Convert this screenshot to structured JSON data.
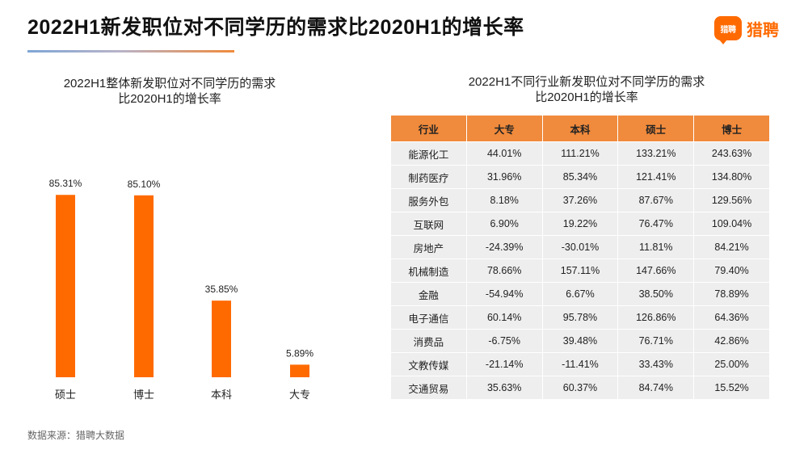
{
  "page": {
    "title": "2022H1新发职位对不同学历的需求比2020H1的增长率",
    "logo_mark": "猎聘",
    "logo_text": "猎聘",
    "source": "数据来源：猎聘大数据",
    "accent_color": "#ff6a00",
    "header_color": "#f08a3c"
  },
  "chart_data": [
    {
      "type": "bar",
      "title_line1": "2022H1整体新发职位对不同学历的需求",
      "title_line2": "比2020H1的增长率",
      "categories": [
        "硕士",
        "博士",
        "本科",
        "大专"
      ],
      "values": [
        85.31,
        85.1,
        35.85,
        5.89
      ],
      "labels": [
        "85.31%",
        "85.10%",
        "35.85%",
        "5.89%"
      ],
      "ylim": [
        0,
        100
      ],
      "grid": false,
      "color": "#ff6a00"
    },
    {
      "type": "table",
      "title_line1": "2022H1不同行业新发职位对不同学历的需求",
      "title_line2": "比2020H1的增长率",
      "columns": [
        "行业",
        "大专",
        "本科",
        "硕士",
        "博士"
      ],
      "rows": [
        [
          "能源化工",
          "44.01%",
          "111.21%",
          "133.21%",
          "243.63%"
        ],
        [
          "制药医疗",
          "31.96%",
          "85.34%",
          "121.41%",
          "134.80%"
        ],
        [
          "服务外包",
          "8.18%",
          "37.26%",
          "87.67%",
          "129.56%"
        ],
        [
          "互联网",
          "6.90%",
          "19.22%",
          "76.47%",
          "109.04%"
        ],
        [
          "房地产",
          "-24.39%",
          "-30.01%",
          "11.81%",
          "84.21%"
        ],
        [
          "机械制造",
          "78.66%",
          "157.11%",
          "147.66%",
          "79.40%"
        ],
        [
          "金融",
          "-54.94%",
          "6.67%",
          "38.50%",
          "78.89%"
        ],
        [
          "电子通信",
          "60.14%",
          "95.78%",
          "126.86%",
          "64.36%"
        ],
        [
          "消费品",
          "-6.75%",
          "39.48%",
          "76.71%",
          "42.86%"
        ],
        [
          "文教传媒",
          "-21.14%",
          "-11.41%",
          "33.43%",
          "25.00%"
        ],
        [
          "交通贸易",
          "35.63%",
          "60.37%",
          "84.74%",
          "15.52%"
        ]
      ]
    }
  ]
}
